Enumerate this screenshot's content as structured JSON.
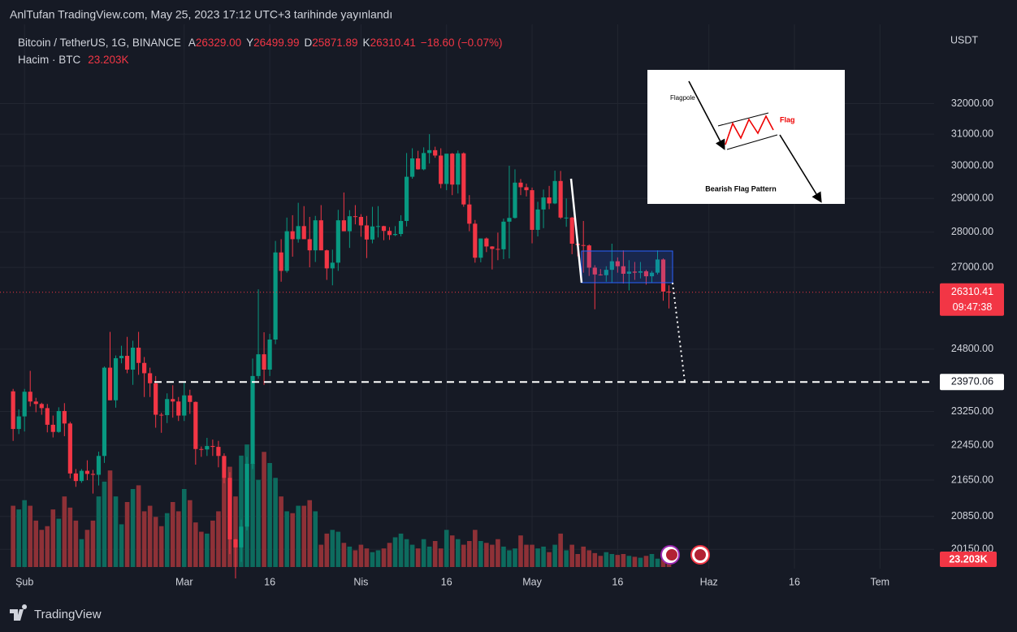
{
  "chart_data": {
    "type": "candlestick",
    "header": "AnlTufan TradingView.com, May 25, 2023 17:12 UTC+3 tarihinde yayınlandı",
    "symbol": "Bitcoin / TetherUS, 1G, BINANCE",
    "legend": [
      {
        "key": "A",
        "value": "26329.00"
      },
      {
        "key": "Y",
        "value": "26499.99"
      },
      {
        "key": "D",
        "value": "25871.89"
      },
      {
        "key": "K",
        "value": "26310.41"
      }
    ],
    "change": "−18.60 (−0.07%)",
    "volume_title": "Hacim · BTC",
    "volume_label": "23.203K",
    "currency": "USDT",
    "countdown": "09:47:38",
    "level": 23970.06,
    "brand": "TradingView",
    "inset": {
      "flagpole": "Flagpole",
      "flag": "Flag",
      "caption": "Bearish Flag Pattern"
    },
    "log_scale": true,
    "grid": true,
    "up_color": "#089981",
    "down_color": "#f23645",
    "volume_up_color": "#0d6b5e",
    "volume_down_color": "#8e3137",
    "xlim": [
      -4.3,
      159.5
    ],
    "xticks": [
      {
        "value": 0,
        "label": "Şub"
      },
      {
        "value": 28,
        "label": "Mar"
      },
      {
        "value": 43,
        "label": "16"
      },
      {
        "value": 59,
        "label": "Nis"
      },
      {
        "value": 74,
        "label": "16"
      },
      {
        "value": 89,
        "label": "May"
      },
      {
        "value": 104,
        "label": "16"
      },
      {
        "value": 120,
        "label": "Haz"
      },
      {
        "value": 135,
        "label": "16"
      },
      {
        "value": 150,
        "label": "Tem"
      }
    ],
    "ylim": [
      19750,
      34450
    ],
    "yticks": [
      {
        "value": 32000,
        "label": "32000.00"
      },
      {
        "value": 31000,
        "label": "31000.00"
      },
      {
        "value": 30000,
        "label": "30000.00"
      },
      {
        "value": 29000,
        "label": "29000.00"
      },
      {
        "value": 28000,
        "label": "28000.00"
      },
      {
        "value": 27000,
        "label": "27000.00"
      },
      {
        "value": 24800,
        "label": "24800.00"
      },
      {
        "value": 23250,
        "label": "23250.00"
      },
      {
        "value": 22450,
        "label": "22450.00"
      },
      {
        "value": 21650,
        "label": "21650.00"
      },
      {
        "value": 20850,
        "label": "20850.00"
      },
      {
        "value": 20150,
        "label": "20150.00"
      }
    ],
    "volume_lim": [
      0,
      700
    ],
    "x": [
      -2,
      -1,
      0,
      1,
      2,
      3,
      4,
      5,
      6,
      7,
      8,
      9,
      10,
      11,
      12,
      13,
      14,
      15,
      16,
      17,
      18,
      19,
      20,
      21,
      22,
      23,
      24,
      25,
      26,
      27,
      28,
      29,
      30,
      31,
      32,
      33,
      34,
      35,
      36,
      37,
      38,
      39,
      40,
      41,
      42,
      43,
      44,
      45,
      46,
      47,
      48,
      49,
      50,
      51,
      52,
      53,
      54,
      55,
      56,
      57,
      58,
      59,
      60,
      61,
      62,
      63,
      64,
      65,
      66,
      67,
      68,
      69,
      70,
      71,
      72,
      73,
      74,
      75,
      76,
      77,
      78,
      79,
      80,
      81,
      82,
      83,
      84,
      85,
      86,
      87,
      88,
      89,
      90,
      91,
      92,
      93,
      94,
      95,
      96,
      97,
      98,
      99,
      100,
      101,
      102,
      103,
      104,
      105,
      106,
      107,
      108,
      109,
      110,
      111,
      112,
      113
    ],
    "ohlc": [
      [
        23740,
        23800,
        22550,
        22830
      ],
      [
        22830,
        23300,
        22710,
        23130
      ],
      [
        23130,
        23800,
        22770,
        23730
      ],
      [
        23730,
        24250,
        23370,
        23490
      ],
      [
        23490,
        23580,
        23230,
        23430
      ],
      [
        23430,
        23460,
        23170,
        23330
      ],
      [
        23330,
        23430,
        22750,
        22930
      ],
      [
        22930,
        23150,
        22630,
        22760
      ],
      [
        22760,
        23350,
        22740,
        23260
      ],
      [
        23260,
        23450,
        22660,
        22960
      ],
      [
        22960,
        23000,
        21690,
        21800
      ],
      [
        21800,
        21900,
        21500,
        21630
      ],
      [
        21630,
        21900,
        21590,
        21860
      ],
      [
        21860,
        22100,
        21650,
        21790
      ],
      [
        21790,
        21880,
        21350,
        21770
      ],
      [
        21770,
        22300,
        21530,
        22200
      ],
      [
        22200,
        24360,
        22040,
        24330
      ],
      [
        24330,
        25250,
        23520,
        23520
      ],
      [
        23520,
        24640,
        23340,
        24570
      ],
      [
        24570,
        24890,
        24440,
        24630
      ],
      [
        24630,
        25120,
        24190,
        24280
      ],
      [
        24280,
        25020,
        23900,
        24840
      ],
      [
        24840,
        25250,
        24150,
        24450
      ],
      [
        24450,
        24600,
        23600,
        24190
      ],
      [
        24190,
        24330,
        23600,
        23940
      ],
      [
        23940,
        24120,
        22860,
        23170
      ],
      [
        23170,
        23220,
        22740,
        23160
      ],
      [
        23160,
        23690,
        22970,
        23550
      ],
      [
        23550,
        23890,
        23100,
        23490
      ],
      [
        23490,
        23600,
        23020,
        23150
      ],
      [
        23150,
        23980,
        23020,
        23640
      ],
      [
        23640,
        23780,
        23190,
        23480
      ],
      [
        23480,
        23490,
        22000,
        22360
      ],
      [
        22360,
        22420,
        22180,
        22350
      ],
      [
        22350,
        22620,
        22200,
        22430
      ],
      [
        22430,
        22580,
        22200,
        22410
      ],
      [
        22410,
        22550,
        21940,
        22200
      ],
      [
        22200,
        22260,
        21580,
        21700
      ],
      [
        21700,
        21830,
        20050,
        20360
      ],
      [
        20360,
        20370,
        19550,
        20190
      ],
      [
        20190,
        20780,
        19890,
        20630
      ],
      [
        20630,
        22180,
        20550,
        22020
      ],
      [
        22020,
        24560,
        21900,
        24120
      ],
      [
        24120,
        26390,
        24050,
        24670
      ],
      [
        24670,
        25240,
        23900,
        24280
      ],
      [
        24280,
        25200,
        24120,
        25050
      ],
      [
        25050,
        27750,
        24930,
        27420
      ],
      [
        27420,
        27800,
        26600,
        26900
      ],
      [
        26900,
        28430,
        26850,
        28030
      ],
      [
        28030,
        28500,
        27300,
        27800
      ],
      [
        27800,
        28870,
        27700,
        28180
      ],
      [
        28180,
        28770,
        27900,
        27800
      ],
      [
        27800,
        28450,
        27000,
        27480
      ],
      [
        27480,
        28480,
        27150,
        28350
      ],
      [
        28350,
        28800,
        27500,
        27480
      ],
      [
        27480,
        27500,
        26650,
        26970
      ],
      [
        26970,
        27500,
        26500,
        27130
      ],
      [
        27130,
        28660,
        26900,
        28350
      ],
      [
        28350,
        29180,
        28030,
        28030
      ],
      [
        28030,
        28650,
        27550,
        28470
      ],
      [
        28470,
        28800,
        28230,
        28450
      ],
      [
        28450,
        28530,
        27870,
        28200
      ],
      [
        28200,
        28480,
        27260,
        27790
      ],
      [
        27790,
        28750,
        27680,
        28170
      ],
      [
        28170,
        28770,
        27850,
        28180
      ],
      [
        28180,
        28190,
        27770,
        28040
      ],
      [
        28040,
        28150,
        27780,
        27920
      ],
      [
        27920,
        28180,
        27890,
        27950
      ],
      [
        27950,
        28500,
        27880,
        28330
      ],
      [
        28330,
        30400,
        28170,
        29660
      ],
      [
        29660,
        30550,
        29600,
        30230
      ],
      [
        30230,
        30470,
        29880,
        29890
      ],
      [
        29890,
        30580,
        29860,
        30400
      ],
      [
        30400,
        31000,
        30070,
        30490
      ],
      [
        30490,
        30600,
        30250,
        30320
      ],
      [
        30320,
        30550,
        29310,
        29440
      ],
      [
        29440,
        30300,
        29250,
        30380
      ],
      [
        30380,
        30400,
        29100,
        29420
      ],
      [
        29420,
        30480,
        29150,
        30390
      ],
      [
        30390,
        30420,
        28750,
        28820
      ],
      [
        28820,
        29100,
        28030,
        28250
      ],
      [
        28250,
        28360,
        27130,
        27270
      ],
      [
        27270,
        27820,
        27140,
        27820
      ],
      [
        27820,
        27850,
        27430,
        27590
      ],
      [
        27590,
        27600,
        26940,
        27520
      ],
      [
        27520,
        27990,
        27200,
        27510
      ],
      [
        27510,
        28400,
        27230,
        28310
      ],
      [
        28310,
        30000,
        27250,
        28420
      ],
      [
        28420,
        29890,
        28400,
        29480
      ],
      [
        29480,
        29590,
        29100,
        29340
      ],
      [
        29340,
        29450,
        29060,
        29250
      ],
      [
        29250,
        29330,
        27680,
        28070
      ],
      [
        28070,
        28900,
        27880,
        28670
      ],
      [
        28670,
        29270,
        28120,
        29030
      ],
      [
        29030,
        29380,
        28680,
        28850
      ],
      [
        28850,
        29850,
        28830,
        29530
      ],
      [
        29530,
        29840,
        28390,
        28430
      ],
      [
        28430,
        29000,
        28160,
        28430
      ],
      [
        28430,
        28450,
        27370,
        27670
      ],
      [
        27670,
        27840,
        27310,
        27630
      ],
      [
        27630,
        28330,
        26850,
        27620
      ],
      [
        27620,
        27650,
        26760,
        26990
      ],
      [
        26990,
        27060,
        25850,
        26800
      ],
      [
        26800,
        26950,
        26770,
        26780
      ],
      [
        26780,
        27030,
        26600,
        26930
      ],
      [
        26930,
        27670,
        26570,
        27170
      ],
      [
        27170,
        27280,
        26850,
        27030
      ],
      [
        27030,
        27480,
        26550,
        26820
      ],
      [
        26820,
        27200,
        26360,
        26880
      ],
      [
        26880,
        27150,
        26650,
        26850
      ],
      [
        26850,
        27150,
        26690,
        26890
      ],
      [
        26890,
        26930,
        26520,
        26750
      ],
      [
        26750,
        26900,
        26580,
        26850
      ],
      [
        26850,
        27480,
        26800,
        27220
      ],
      [
        27220,
        27250,
        26080,
        26329
      ],
      [
        26329,
        26499.99,
        25871.89,
        26310.41
      ]
    ],
    "volume": [
      330,
      310,
      360,
      330,
      250,
      200,
      220,
      310,
      260,
      380,
      320,
      250,
      150,
      200,
      250,
      380,
      460,
      520,
      380,
      230,
      350,
      420,
      440,
      300,
      330,
      270,
      220,
      290,
      350,
      300,
      420,
      360,
      240,
      190,
      180,
      250,
      300,
      480,
      540,
      380,
      600,
      660,
      560,
      470,
      620,
      560,
      480,
      380,
      300,
      290,
      330,
      330,
      360,
      300,
      120,
      180,
      200,
      190,
      130,
      110,
      90,
      120,
      100,
      80,
      90,
      100,
      130,
      160,
      180,
      150,
      120,
      100,
      150,
      110,
      140,
      100,
      200,
      170,
      150,
      120,
      140,
      200,
      140,
      130,
      120,
      150,
      110,
      90,
      100,
      170,
      120,
      120,
      100,
      110,
      80,
      120,
      180,
      90,
      120,
      70,
      110,
      90,
      75,
      60,
      80,
      70,
      65,
      70,
      60,
      55,
      50,
      60,
      70,
      45,
      40,
      23.203
    ]
  }
}
